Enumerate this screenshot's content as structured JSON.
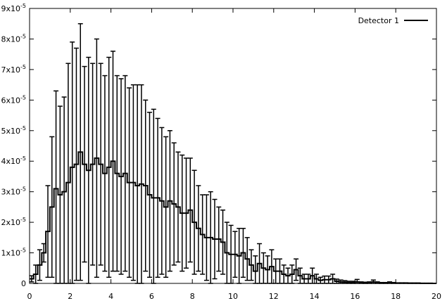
{
  "chart_data": {
    "type": "line",
    "title": "",
    "xlabel": "",
    "ylabel": "",
    "xlim": [
      0,
      20
    ],
    "ylim": [
      0,
      9e-05
    ],
    "x_ticks": [
      0,
      2,
      4,
      6,
      8,
      10,
      12,
      14,
      16,
      18,
      20
    ],
    "x_tick_labels": [
      "0",
      "2",
      "4",
      "6",
      "8",
      "10",
      "12",
      "14",
      "16",
      "18",
      "20"
    ],
    "y_ticks": [
      0,
      1e-05,
      2e-05,
      3e-05,
      4e-05,
      5e-05,
      6e-05,
      7e-05,
      8e-05,
      9e-05
    ],
    "y_tick_labels": [
      {
        "base": "0",
        "exp": ""
      },
      {
        "base": "1x10",
        "exp": "-5"
      },
      {
        "base": "2x10",
        "exp": "-5"
      },
      {
        "base": "3x10",
        "exp": "-5"
      },
      {
        "base": "4x10",
        "exp": "-5"
      },
      {
        "base": "5x10",
        "exp": "-5"
      },
      {
        "base": "6x10",
        "exp": "-5"
      },
      {
        "base": "7x10",
        "exp": "-5"
      },
      {
        "base": "8x10",
        "exp": "-5"
      },
      {
        "base": "9x10",
        "exp": "-5"
      }
    ],
    "grid": false,
    "legend_position": "top-right",
    "series": [
      {
        "name": "Detector 1",
        "color": "#000000",
        "style": "steps with error bars",
        "bin_width": 0.2,
        "x": [
          0.1,
          0.3,
          0.5,
          0.7,
          0.9,
          1.1,
          1.3,
          1.5,
          1.7,
          1.9,
          2.1,
          2.3,
          2.5,
          2.7,
          2.9,
          3.1,
          3.3,
          3.5,
          3.7,
          3.9,
          4.1,
          4.3,
          4.5,
          4.7,
          4.9,
          5.1,
          5.3,
          5.5,
          5.7,
          5.9,
          6.1,
          6.3,
          6.5,
          6.7,
          6.9,
          7.1,
          7.3,
          7.5,
          7.7,
          7.9,
          8.1,
          8.3,
          8.5,
          8.7,
          8.9,
          9.1,
          9.3,
          9.5,
          9.7,
          9.9,
          10.1,
          10.3,
          10.5,
          10.7,
          10.9,
          11.1,
          11.3,
          11.5,
          11.7,
          11.9,
          12.1,
          12.3,
          12.5,
          12.7,
          12.9,
          13.1,
          13.3,
          13.5,
          13.7,
          13.9,
          14.1,
          14.3,
          14.5,
          14.7,
          14.9,
          15.1,
          15.3,
          15.5,
          15.7,
          15.9,
          16.1,
          16.3,
          16.5,
          16.7,
          16.9,
          17.1,
          17.3,
          17.5,
          17.7,
          17.9,
          18.1,
          18.3,
          18.5,
          18.7,
          18.9,
          19.1,
          19.3,
          19.5,
          19.7,
          19.9
        ],
        "y": [
          1.5e-06,
          3e-06,
          6e-06,
          1e-05,
          1.7e-05,
          2.5e-05,
          3.1e-05,
          2.9e-05,
          3e-05,
          3.3e-05,
          3.8e-05,
          3.9e-05,
          4.3e-05,
          3.9e-05,
          3.7e-05,
          3.9e-05,
          4.1e-05,
          3.9e-05,
          3.6e-05,
          3.8e-05,
          4e-05,
          3.6e-05,
          3.5e-05,
          3.6e-05,
          3.3e-05,
          3.3e-05,
          3.2e-05,
          3.25e-05,
          3.2e-05,
          2.9e-05,
          2.8e-05,
          2.8e-05,
          2.7e-05,
          2.5e-05,
          2.7e-05,
          2.6e-05,
          2.5e-05,
          2.3e-05,
          2.3e-05,
          2.4e-05,
          2e-05,
          1.8e-05,
          1.6e-05,
          1.5e-05,
          1.5e-05,
          1.45e-05,
          1.45e-05,
          1.35e-05,
          1e-05,
          9.5e-06,
          9.5e-06,
          9e-06,
          1e-05,
          8e-06,
          6e-06,
          4e-06,
          6.5e-06,
          5e-06,
          4.5e-06,
          5.5e-06,
          4e-06,
          4e-06,
          3e-06,
          2.5e-06,
          3e-06,
          4.5e-06,
          2.5e-06,
          1.5e-06,
          1.5e-06,
          2.5e-06,
          1.5e-06,
          1e-06,
          1.2e-06,
          1.2e-06,
          1.5e-06,
          7e-07,
          5e-07,
          4e-07,
          3e-07,
          3e-07,
          5e-07,
          2e-07,
          1e-07,
          2e-07,
          5e-07,
          2e-07,
          1e-07,
          1e-07,
          2e-07,
          1e-07,
          1e-07,
          1e-07,
          1e-07,
          5e-08,
          5e-08,
          5e-08,
          2e-08,
          2e-08,
          2e-08,
          0
        ],
        "y_err": [
          1e-06,
          3e-06,
          5e-06,
          3e-06,
          1.5e-05,
          2.3e-05,
          3.2e-05,
          2.9e-05,
          3.1e-05,
          3.9e-05,
          4.1e-05,
          3.8e-05,
          4.2e-05,
          3.2e-05,
          3.7e-05,
          3.3e-05,
          3.9e-05,
          3.3e-05,
          3.2e-05,
          3.6e-05,
          3.6e-05,
          3.2e-05,
          3.2e-05,
          3.2e-05,
          3.1e-05,
          3.2e-05,
          3.3e-05,
          3.25e-05,
          2.8e-05,
          2.7e-05,
          2.9e-05,
          2.6e-05,
          2.4e-05,
          2.3e-05,
          2.3e-05,
          2e-05,
          1.8e-05,
          1.9e-05,
          1.8e-05,
          1.7e-05,
          1.7e-05,
          1.4e-05,
          1.3e-05,
          1.4e-05,
          1.5e-05,
          1.3e-05,
          1.05e-05,
          1.05e-05,
          1e-05,
          9.5e-06,
          7.5e-06,
          9e-06,
          8e-06,
          7e-06,
          5e-06,
          5e-06,
          6.5e-06,
          5e-06,
          4.5e-06,
          5.5e-06,
          4e-06,
          4e-06,
          3e-06,
          2.5e-06,
          3e-06,
          3.5e-06,
          2.5e-06,
          1.5e-06,
          1.5e-06,
          2.5e-06,
          1.5e-06,
          1e-06,
          1.2e-06,
          1.2e-06,
          1.5e-06,
          7e-07,
          6e-07,
          5e-07,
          4e-07,
          4e-07,
          8e-07,
          3e-07,
          3e-07,
          3e-07,
          6e-07,
          3e-07,
          2e-07,
          2e-07,
          3e-07,
          2e-07,
          1e-07,
          1e-07,
          1e-07,
          1e-07,
          1e-07,
          1e-07,
          5e-08,
          5e-08,
          5e-08,
          0
        ]
      }
    ]
  }
}
